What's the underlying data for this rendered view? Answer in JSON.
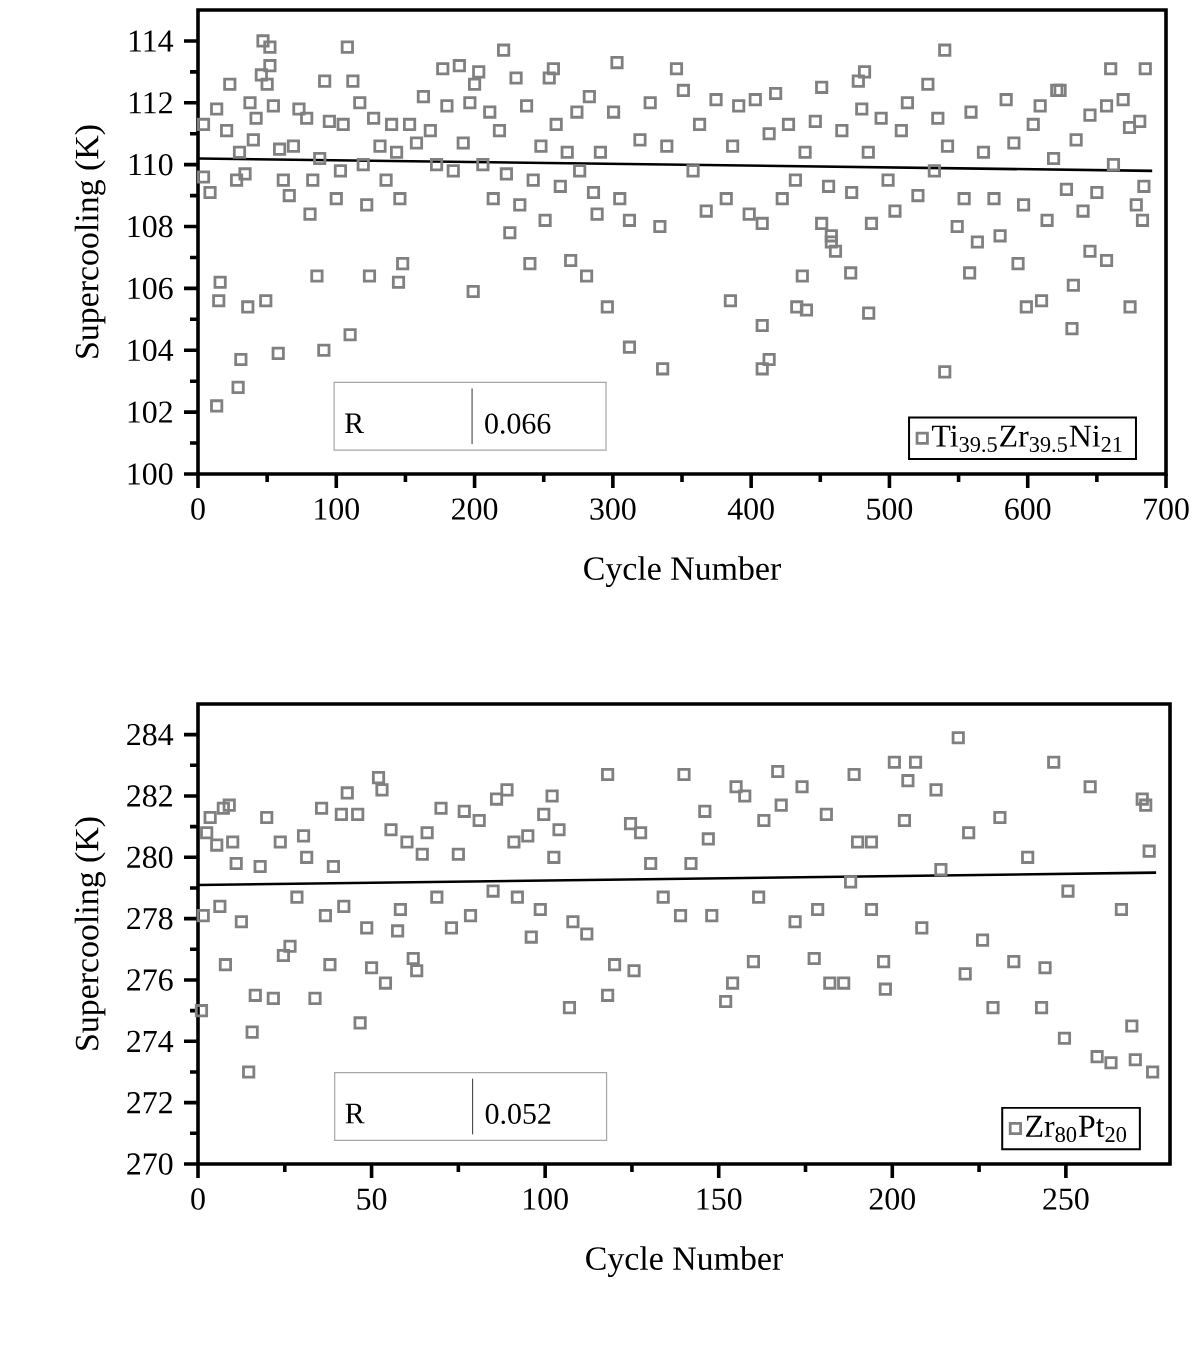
{
  "chart_data": [
    {
      "type": "scatter",
      "xlabel": "Cycle Number",
      "ylabel": "Supercooling (K)",
      "xlim": [
        0,
        700
      ],
      "ylim": [
        100,
        115
      ],
      "xticks": [
        0,
        100,
        200,
        300,
        400,
        500,
        600,
        700
      ],
      "yticks": [
        100,
        102,
        104,
        106,
        108,
        110,
        112,
        114
      ],
      "legend": "bottom right",
      "annotations": [
        "R",
        "0.066"
      ],
      "series": [
        {
          "name": "Ti$_{39.5}$Zr$_{39.5}$Ni$_{21}$",
          "color": "#808080",
          "marker": "square",
          "x": [
            13.5,
            29,
            31,
            15,
            16,
            36,
            49,
            58,
            91,
            110,
            86,
            124,
            145,
            148,
            199,
            108,
            47,
            52,
            221,
            34,
            4,
            4,
            8.7,
            13.5,
            20.7,
            23,
            27.9,
            30,
            37.6,
            40,
            42,
            45.8,
            50,
            52,
            54.5,
            59,
            61.7,
            66,
            69,
            73,
            78.6,
            81,
            83,
            88,
            91.6,
            95,
            100,
            103,
            105,
            112,
            117,
            119.5,
            122,
            127,
            131.6,
            136,
            140,
            143.6,
            146,
            153,
            158,
            163,
            168,
            172.5,
            177,
            180,
            184.6,
            189,
            191.8,
            196.6,
            200,
            203,
            206,
            211,
            213.5,
            218,
            223,
            225.5,
            230,
            232.7,
            237.6,
            240,
            242.4,
            248,
            251,
            254,
            257,
            259,
            262,
            267,
            269.5,
            274,
            276,
            281,
            283,
            286,
            288.6,
            540,
            540,
            408,
            408,
            413,
            312,
            336,
            296,
            385,
            433,
            440,
            437,
            472,
            485,
            558,
            593,
            599,
            610,
            633,
            632,
            645,
            657,
            674,
            660,
            685,
            303,
            451,
            482,
            621,
            461,
            458,
            291,
            300.5,
            305,
            312,
            319.6,
            327,
            334,
            339,
            346,
            351,
            358,
            362.7,
            367.5,
            374.6,
            382,
            386.6,
            391,
            398.6,
            403,
            408,
            413,
            417.7,
            422.5,
            427,
            432,
            439,
            446.4,
            451,
            456,
            458,
            465.6,
            472.7,
            477.5,
            480,
            484.7,
            487,
            494,
            499,
            504,
            508.6,
            513,
            520.6,
            527.8,
            532.5,
            535,
            542,
            549,
            554,
            559,
            563.6,
            568,
            575.6,
            580,
            584.4,
            590,
            597,
            604,
            609,
            614,
            618.7,
            623.4,
            628,
            635,
            640,
            645,
            650,
            657,
            662,
            669,
            673.6,
            678.5,
            681,
            683,
            684
          ],
          "values": [
            102.2,
            102.8,
            103.7,
            105.6,
            106.2,
            105.4,
            105.6,
            103.9,
            104.0,
            104.5,
            106.4,
            106.4,
            106.2,
            106.8,
            105.9,
            113.8,
            114.0,
            113.8,
            113.7,
            109.7,
            111.3,
            109.6,
            109.1,
            111.8,
            111.1,
            112.6,
            109.5,
            110.4,
            112.0,
            110.8,
            111.5,
            112.9,
            112.6,
            113.2,
            111.9,
            110.5,
            109.5,
            109.0,
            110.6,
            111.8,
            111.5,
            108.4,
            109.5,
            110.2,
            112.7,
            111.4,
            108.9,
            109.8,
            111.3,
            112.7,
            112.0,
            110.0,
            108.7,
            111.5,
            110.6,
            109.5,
            111.3,
            110.4,
            108.9,
            111.3,
            110.7,
            112.2,
            111.1,
            110.0,
            113.1,
            111.9,
            109.8,
            113.2,
            110.7,
            112.0,
            112.6,
            113.0,
            110.0,
            111.7,
            108.9,
            111.1,
            109.7,
            107.8,
            112.8,
            108.7,
            111.9,
            106.8,
            109.5,
            110.6,
            108.2,
            112.8,
            113.1,
            111.3,
            109.3,
            110.4,
            106.9,
            111.7,
            109.8,
            106.4,
            112.2,
            109.1,
            108.4,
            113.7,
            103.3,
            104.8,
            103.4,
            103.7,
            104.1,
            103.4,
            105.4,
            105.6,
            105.4,
            105.3,
            106.4,
            106.5,
            105.2,
            106.5,
            106.8,
            105.4,
            105.6,
            106.1,
            104.7,
            107.2,
            106.9,
            105.4,
            113.1,
            113.1,
            113.3,
            112.5,
            113.0,
            112.4,
            107.2,
            107.7,
            110.4,
            111.7,
            108.9,
            108.2,
            110.8,
            112.0,
            108.0,
            110.6,
            113.1,
            112.4,
            109.8,
            111.3,
            108.5,
            112.1,
            108.9,
            110.6,
            111.9,
            108.4,
            112.1,
            108.1,
            111.0,
            112.3,
            108.9,
            111.3,
            109.5,
            110.4,
            111.4,
            108.1,
            109.3,
            107.5,
            111.1,
            109.1,
            112.7,
            111.8,
            110.4,
            108.1,
            111.5,
            109.5,
            108.5,
            111.1,
            112.0,
            109.0,
            112.6,
            109.8,
            111.5,
            110.6,
            108.0,
            108.9,
            111.7,
            107.5,
            110.4,
            108.9,
            107.7,
            112.1,
            110.7,
            108.7,
            111.3,
            111.9,
            108.2,
            110.2,
            112.4,
            109.2,
            110.8,
            108.5,
            111.6,
            109.1,
            111.9,
            110.0,
            112.1,
            111.2,
            108.7,
            111.4,
            108.2,
            109.3
          ]
        },
        {
          "type": "line",
          "color": "#000000",
          "marker": "none",
          "x": [
            0,
            690
          ],
          "values": [
            110.2,
            109.8
          ]
        }
      ]
    },
    {
      "type": "scatter",
      "xlabel": "Cycle Number",
      "ylabel": "Supercooling (K)",
      "xlim": [
        0,
        280
      ],
      "ylim": [
        270,
        285
      ],
      "xticks": [
        0,
        50,
        100,
        150,
        200,
        250
      ],
      "yticks": [
        270,
        272,
        274,
        276,
        278,
        280,
        282,
        284
      ],
      "legend": "bottom right",
      "annotations": [
        "R",
        "0.052"
      ],
      "series": [
        {
          "name": "Zr$_{80}$Pt$_{20}$",
          "color": "#808080",
          "marker": "square",
          "x": [
            1,
            1.5,
            2.5,
            3.5,
            5.4,
            6.3,
            7.9,
            7.3,
            9,
            10,
            11,
            12.5,
            14.6,
            15.6,
            16.5,
            17.9,
            19.8,
            21.7,
            23.7,
            24.6,
            26.5,
            28.5,
            30.4,
            31.3,
            33.7,
            35.6,
            36.7,
            38,
            39,
            41.3,
            42,
            43,
            46,
            46.7,
            48.6,
            50,
            52,
            53,
            54,
            55.6,
            57.5,
            58.3,
            60.2,
            62,
            63,
            64.6,
            66,
            68.8,
            70,
            73,
            75,
            76.7,
            78.5,
            81,
            85,
            86,
            89,
            91,
            92,
            95,
            96,
            98.6,
            99.6,
            102,
            102.5,
            104,
            107,
            108,
            112,
            118,
            118,
            120,
            125.6,
            124.6,
            127.5,
            130.4,
            134,
            139,
            140,
            142,
            146,
            147,
            148,
            152,
            154,
            155,
            157.5,
            160,
            161.5,
            163,
            167,
            168,
            172,
            174,
            177.5,
            178.5,
            182,
            186,
            181,
            189,
            188,
            190,
            194,
            197.5,
            198,
            194,
            200.6,
            203.5,
            204.5,
            206.7,
            208.5,
            212.6,
            214,
            219,
            221,
            222,
            226,
            229,
            231,
            235,
            239,
            243,
            244,
            246.5,
            249.6,
            250.6,
            257,
            259,
            263,
            266,
            269,
            270,
            272,
            275,
            274,
            273
          ],
          "values": [
            275.0,
            278.1,
            280.8,
            281.3,
            280.4,
            278.4,
            276.5,
            281.6,
            281.7,
            280.5,
            279.8,
            277.9,
            273.0,
            274.3,
            275.5,
            279.7,
            281.3,
            275.4,
            280.5,
            276.8,
            277.1,
            278.7,
            280.7,
            280.0,
            275.4,
            281.6,
            278.1,
            276.5,
            279.7,
            281.4,
            278.4,
            282.1,
            281.4,
            274.6,
            277.7,
            276.4,
            282.6,
            282.2,
            275.9,
            280.9,
            277.6,
            278.3,
            280.5,
            276.7,
            276.3,
            280.1,
            280.8,
            278.7,
            281.6,
            277.7,
            280.1,
            281.5,
            278.1,
            281.2,
            278.9,
            281.9,
            282.2,
            280.5,
            278.7,
            280.7,
            277.4,
            278.3,
            281.4,
            282.0,
            280.0,
            280.9,
            275.1,
            277.9,
            277.5,
            282.7,
            275.5,
            276.5,
            276.3,
            281.1,
            280.8,
            279.8,
            278.7,
            278.1,
            282.7,
            279.8,
            281.5,
            280.6,
            278.1,
            275.3,
            275.9,
            282.3,
            282.0,
            276.6,
            278.7,
            281.2,
            282.8,
            281.7,
            277.9,
            282.3,
            276.7,
            278.3,
            275.9,
            275.9,
            281.4,
            282.7,
            279.2,
            280.5,
            278.3,
            276.6,
            275.7,
            280.5,
            283.1,
            281.2,
            282.5,
            283.1,
            277.7,
            282.2,
            279.6,
            283.9,
            276.2,
            280.8,
            277.3,
            275.1,
            281.3,
            276.6,
            280.0,
            275.1,
            276.4,
            283.1,
            274.1,
            278.9,
            282.3,
            273.5,
            273.3,
            278.3,
            274.5,
            273.4,
            281.9,
            273.0,
            280.2,
            281.7
          ]
        },
        {
          "type": "line",
          "color": "#000000",
          "marker": "none",
          "x": [
            0,
            276
          ],
          "values": [
            279.1,
            279.5
          ]
        }
      ]
    }
  ]
}
